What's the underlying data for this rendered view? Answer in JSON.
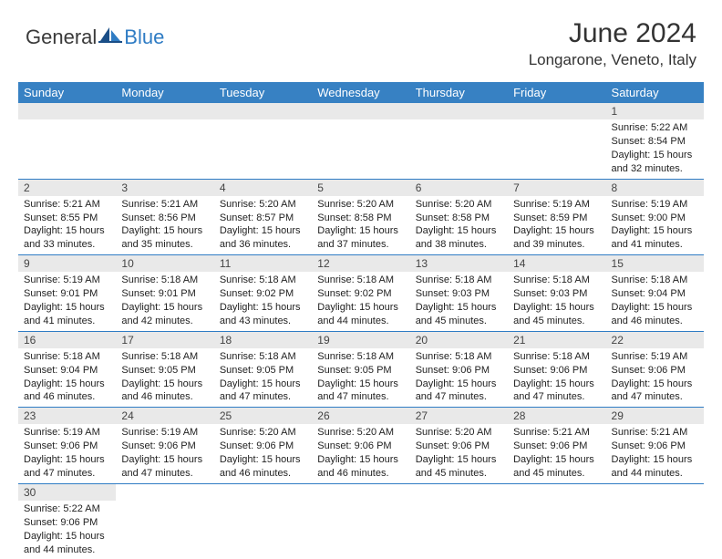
{
  "brand": {
    "part1": "General",
    "part2": "Blue"
  },
  "title": "June 2024",
  "location": "Longarone, Veneto, Italy",
  "colors": {
    "header_bg": "#3781c3",
    "header_fg": "#ffffff",
    "row_divider": "#2f7cc4",
    "daynum_bg": "#e9e9e9",
    "brand_blue": "#2f7cc4"
  },
  "weekdays": [
    "Sunday",
    "Monday",
    "Tuesday",
    "Wednesday",
    "Thursday",
    "Friday",
    "Saturday"
  ],
  "weeks": [
    [
      {
        "n": "",
        "sr": "",
        "ss": "",
        "dl": ""
      },
      {
        "n": "",
        "sr": "",
        "ss": "",
        "dl": ""
      },
      {
        "n": "",
        "sr": "",
        "ss": "",
        "dl": ""
      },
      {
        "n": "",
        "sr": "",
        "ss": "",
        "dl": ""
      },
      {
        "n": "",
        "sr": "",
        "ss": "",
        "dl": ""
      },
      {
        "n": "",
        "sr": "",
        "ss": "",
        "dl": ""
      },
      {
        "n": "1",
        "sr": "Sunrise: 5:22 AM",
        "ss": "Sunset: 8:54 PM",
        "dl": "Daylight: 15 hours and 32 minutes."
      }
    ],
    [
      {
        "n": "2",
        "sr": "Sunrise: 5:21 AM",
        "ss": "Sunset: 8:55 PM",
        "dl": "Daylight: 15 hours and 33 minutes."
      },
      {
        "n": "3",
        "sr": "Sunrise: 5:21 AM",
        "ss": "Sunset: 8:56 PM",
        "dl": "Daylight: 15 hours and 35 minutes."
      },
      {
        "n": "4",
        "sr": "Sunrise: 5:20 AM",
        "ss": "Sunset: 8:57 PM",
        "dl": "Daylight: 15 hours and 36 minutes."
      },
      {
        "n": "5",
        "sr": "Sunrise: 5:20 AM",
        "ss": "Sunset: 8:58 PM",
        "dl": "Daylight: 15 hours and 37 minutes."
      },
      {
        "n": "6",
        "sr": "Sunrise: 5:20 AM",
        "ss": "Sunset: 8:58 PM",
        "dl": "Daylight: 15 hours and 38 minutes."
      },
      {
        "n": "7",
        "sr": "Sunrise: 5:19 AM",
        "ss": "Sunset: 8:59 PM",
        "dl": "Daylight: 15 hours and 39 minutes."
      },
      {
        "n": "8",
        "sr": "Sunrise: 5:19 AM",
        "ss": "Sunset: 9:00 PM",
        "dl": "Daylight: 15 hours and 41 minutes."
      }
    ],
    [
      {
        "n": "9",
        "sr": "Sunrise: 5:19 AM",
        "ss": "Sunset: 9:01 PM",
        "dl": "Daylight: 15 hours and 41 minutes."
      },
      {
        "n": "10",
        "sr": "Sunrise: 5:18 AM",
        "ss": "Sunset: 9:01 PM",
        "dl": "Daylight: 15 hours and 42 minutes."
      },
      {
        "n": "11",
        "sr": "Sunrise: 5:18 AM",
        "ss": "Sunset: 9:02 PM",
        "dl": "Daylight: 15 hours and 43 minutes."
      },
      {
        "n": "12",
        "sr": "Sunrise: 5:18 AM",
        "ss": "Sunset: 9:02 PM",
        "dl": "Daylight: 15 hours and 44 minutes."
      },
      {
        "n": "13",
        "sr": "Sunrise: 5:18 AM",
        "ss": "Sunset: 9:03 PM",
        "dl": "Daylight: 15 hours and 45 minutes."
      },
      {
        "n": "14",
        "sr": "Sunrise: 5:18 AM",
        "ss": "Sunset: 9:03 PM",
        "dl": "Daylight: 15 hours and 45 minutes."
      },
      {
        "n": "15",
        "sr": "Sunrise: 5:18 AM",
        "ss": "Sunset: 9:04 PM",
        "dl": "Daylight: 15 hours and 46 minutes."
      }
    ],
    [
      {
        "n": "16",
        "sr": "Sunrise: 5:18 AM",
        "ss": "Sunset: 9:04 PM",
        "dl": "Daylight: 15 hours and 46 minutes."
      },
      {
        "n": "17",
        "sr": "Sunrise: 5:18 AM",
        "ss": "Sunset: 9:05 PM",
        "dl": "Daylight: 15 hours and 46 minutes."
      },
      {
        "n": "18",
        "sr": "Sunrise: 5:18 AM",
        "ss": "Sunset: 9:05 PM",
        "dl": "Daylight: 15 hours and 47 minutes."
      },
      {
        "n": "19",
        "sr": "Sunrise: 5:18 AM",
        "ss": "Sunset: 9:05 PM",
        "dl": "Daylight: 15 hours and 47 minutes."
      },
      {
        "n": "20",
        "sr": "Sunrise: 5:18 AM",
        "ss": "Sunset: 9:06 PM",
        "dl": "Daylight: 15 hours and 47 minutes."
      },
      {
        "n": "21",
        "sr": "Sunrise: 5:18 AM",
        "ss": "Sunset: 9:06 PM",
        "dl": "Daylight: 15 hours and 47 minutes."
      },
      {
        "n": "22",
        "sr": "Sunrise: 5:19 AM",
        "ss": "Sunset: 9:06 PM",
        "dl": "Daylight: 15 hours and 47 minutes."
      }
    ],
    [
      {
        "n": "23",
        "sr": "Sunrise: 5:19 AM",
        "ss": "Sunset: 9:06 PM",
        "dl": "Daylight: 15 hours and 47 minutes."
      },
      {
        "n": "24",
        "sr": "Sunrise: 5:19 AM",
        "ss": "Sunset: 9:06 PM",
        "dl": "Daylight: 15 hours and 47 minutes."
      },
      {
        "n": "25",
        "sr": "Sunrise: 5:20 AM",
        "ss": "Sunset: 9:06 PM",
        "dl": "Daylight: 15 hours and 46 minutes."
      },
      {
        "n": "26",
        "sr": "Sunrise: 5:20 AM",
        "ss": "Sunset: 9:06 PM",
        "dl": "Daylight: 15 hours and 46 minutes."
      },
      {
        "n": "27",
        "sr": "Sunrise: 5:20 AM",
        "ss": "Sunset: 9:06 PM",
        "dl": "Daylight: 15 hours and 45 minutes."
      },
      {
        "n": "28",
        "sr": "Sunrise: 5:21 AM",
        "ss": "Sunset: 9:06 PM",
        "dl": "Daylight: 15 hours and 45 minutes."
      },
      {
        "n": "29",
        "sr": "Sunrise: 5:21 AM",
        "ss": "Sunset: 9:06 PM",
        "dl": "Daylight: 15 hours and 44 minutes."
      }
    ],
    [
      {
        "n": "30",
        "sr": "Sunrise: 5:22 AM",
        "ss": "Sunset: 9:06 PM",
        "dl": "Daylight: 15 hours and 44 minutes."
      },
      {
        "n": "",
        "sr": "",
        "ss": "",
        "dl": ""
      },
      {
        "n": "",
        "sr": "",
        "ss": "",
        "dl": ""
      },
      {
        "n": "",
        "sr": "",
        "ss": "",
        "dl": ""
      },
      {
        "n": "",
        "sr": "",
        "ss": "",
        "dl": ""
      },
      {
        "n": "",
        "sr": "",
        "ss": "",
        "dl": ""
      },
      {
        "n": "",
        "sr": "",
        "ss": "",
        "dl": ""
      }
    ]
  ]
}
